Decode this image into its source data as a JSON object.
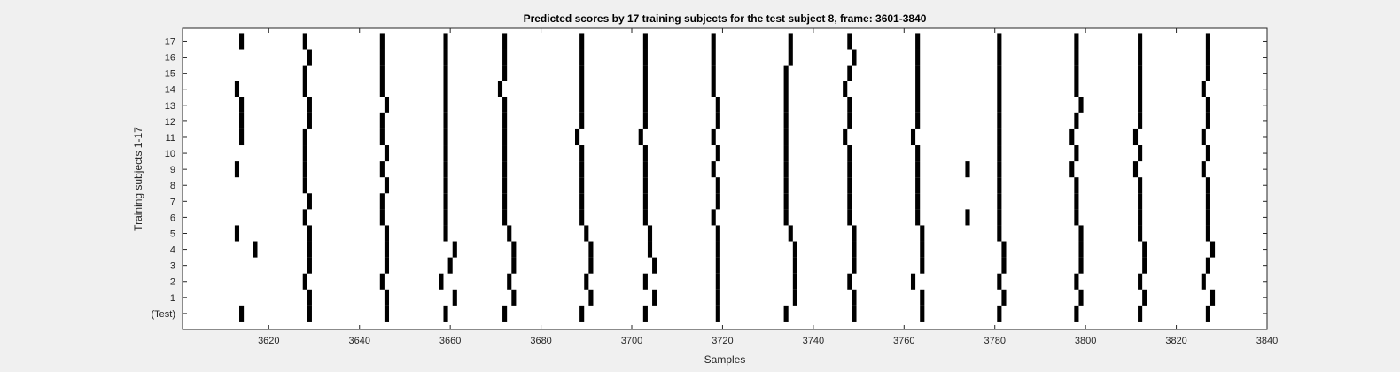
{
  "chart_data": {
    "type": "raster",
    "title": "Predicted scores by 17 training subjects for the test subject 8, frame: 3601-3840",
    "xlabel": "Samples",
    "ylabel": "Training subjects 1-17",
    "xlim": [
      3601,
      3840
    ],
    "xticks": [
      3620,
      3640,
      3660,
      3680,
      3700,
      3720,
      3740,
      3760,
      3780,
      3800,
      3820,
      3840
    ],
    "ytick_labels": [
      "(Test)",
      "1",
      "2",
      "3",
      "4",
      "5",
      "6",
      "7",
      "8",
      "9",
      "10",
      "11",
      "12",
      "13",
      "14",
      "15",
      "16",
      "17"
    ],
    "series": [
      {
        "name": "(Test)",
        "events": [
          3614,
          3629,
          3646,
          3659,
          3672,
          3689,
          3703,
          3719,
          3734,
          3749,
          3764,
          3781,
          3798,
          3812,
          3827
        ]
      },
      {
        "name": "1",
        "events": [
          3629,
          3646,
          3661,
          3674,
          3691,
          3705,
          3719,
          3736,
          3749,
          3764,
          3782,
          3799,
          3813,
          3828
        ]
      },
      {
        "name": "2",
        "events": [
          3628,
          3645,
          3658,
          3673,
          3690,
          3703,
          3719,
          3736,
          3748,
          3762,
          3781,
          3798,
          3812,
          3826
        ]
      },
      {
        "name": "3",
        "events": [
          3629,
          3646,
          3660,
          3674,
          3691,
          3705,
          3719,
          3736,
          3749,
          3764,
          3782,
          3799,
          3813,
          3827
        ]
      },
      {
        "name": "4",
        "events": [
          3617,
          3629,
          3646,
          3661,
          3674,
          3691,
          3704,
          3719,
          3736,
          3749,
          3764,
          3782,
          3799,
          3813,
          3828
        ]
      },
      {
        "name": "5",
        "events": [
          3613,
          3629,
          3646,
          3659,
          3673,
          3690,
          3704,
          3719,
          3735,
          3749,
          3764,
          3781,
          3799,
          3812,
          3827
        ]
      },
      {
        "name": "6",
        "events": [
          3628,
          3645,
          3659,
          3672,
          3689,
          3703,
          3718,
          3734,
          3748,
          3763,
          3774,
          3781,
          3798,
          3812,
          3827
        ]
      },
      {
        "name": "7",
        "events": [
          3629,
          3645,
          3659,
          3672,
          3689,
          3703,
          3719,
          3734,
          3748,
          3763,
          3781,
          3798,
          3812,
          3827
        ]
      },
      {
        "name": "8",
        "events": [
          3628,
          3646,
          3659,
          3672,
          3689,
          3703,
          3719,
          3734,
          3748,
          3763,
          3781,
          3798,
          3812,
          3827
        ]
      },
      {
        "name": "9",
        "events": [
          3613,
          3628,
          3645,
          3659,
          3672,
          3689,
          3703,
          3718,
          3734,
          3748,
          3763,
          3774,
          3781,
          3797,
          3811,
          3826
        ]
      },
      {
        "name": "10",
        "events": [
          3628,
          3646,
          3659,
          3672,
          3689,
          3703,
          3719,
          3734,
          3748,
          3763,
          3781,
          3798,
          3812,
          3827
        ]
      },
      {
        "name": "11",
        "events": [
          3614,
          3628,
          3645,
          3659,
          3672,
          3688,
          3702,
          3718,
          3734,
          3747,
          3762,
          3781,
          3797,
          3811,
          3826
        ]
      },
      {
        "name": "12",
        "events": [
          3614,
          3629,
          3645,
          3659,
          3672,
          3689,
          3703,
          3719,
          3734,
          3748,
          3763,
          3781,
          3798,
          3812,
          3827
        ]
      },
      {
        "name": "13",
        "events": [
          3614,
          3629,
          3646,
          3659,
          3672,
          3689,
          3703,
          3719,
          3734,
          3748,
          3763,
          3781,
          3799,
          3812,
          3827
        ]
      },
      {
        "name": "14",
        "events": [
          3613,
          3628,
          3645,
          3659,
          3671,
          3689,
          3703,
          3718,
          3734,
          3747,
          3763,
          3781,
          3798,
          3812,
          3826
        ]
      },
      {
        "name": "15",
        "events": [
          3628,
          3645,
          3659,
          3672,
          3689,
          3703,
          3718,
          3734,
          3748,
          3763,
          3781,
          3798,
          3812,
          3827
        ]
      },
      {
        "name": "16",
        "events": [
          3629,
          3645,
          3659,
          3672,
          3689,
          3703,
          3718,
          3735,
          3749,
          3763,
          3781,
          3798,
          3812,
          3827
        ]
      },
      {
        "name": "17",
        "events": [
          3614,
          3628,
          3645,
          3659,
          3672,
          3689,
          3703,
          3718,
          3735,
          3748,
          3763,
          3781,
          3798,
          3812,
          3827
        ]
      }
    ]
  },
  "colors": {
    "figure_background": "#f0f0f0",
    "plot_background": "#ffffff",
    "mark": "#000000",
    "axis": "#262626"
  }
}
